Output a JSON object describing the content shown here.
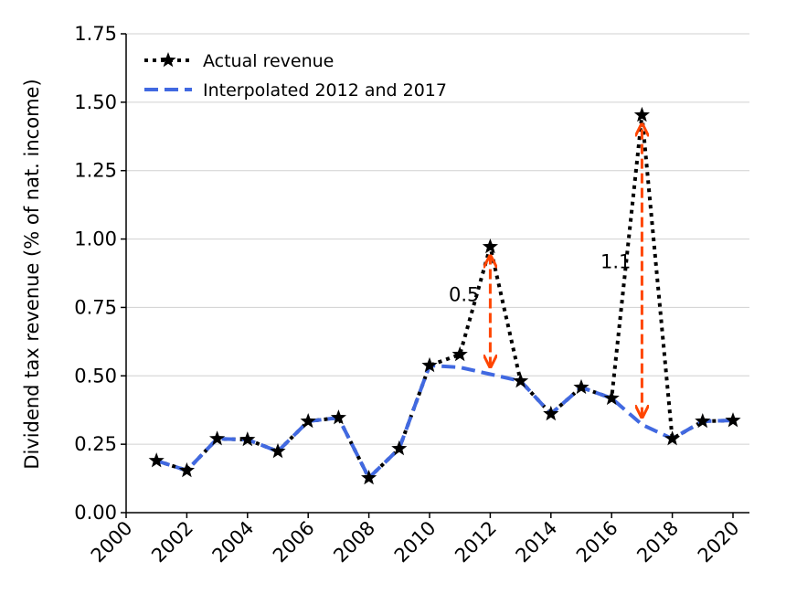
{
  "chart_data": {
    "type": "line",
    "title": "",
    "xlabel": "",
    "ylabel": "Dividend tax revenue (% of nat. income)",
    "xlim": [
      2000,
      2020.5
    ],
    "ylim": [
      0,
      1.75
    ],
    "xticks": [
      "2000",
      "2002",
      "2004",
      "2006",
      "2008",
      "2010",
      "2012",
      "2014",
      "2016",
      "2018",
      "2020"
    ],
    "yticks": [
      "0.00",
      "0.25",
      "0.50",
      "0.75",
      "1.00",
      "1.25",
      "1.50",
      "1.75"
    ],
    "grid": "horizontal",
    "legend_position": "top-left",
    "x": [
      2001,
      2002,
      2003,
      2004,
      2005,
      2006,
      2007,
      2008,
      2009,
      2010,
      2011,
      2012,
      2013,
      2014,
      2015,
      2016,
      2017,
      2018,
      2019,
      2020
    ],
    "series": [
      {
        "name": "Actual revenue",
        "color": "#000000",
        "style": "dotted-star",
        "values": [
          0.19,
          0.154,
          0.27,
          0.267,
          0.224,
          0.334,
          0.347,
          0.127,
          0.234,
          0.538,
          0.578,
          0.972,
          0.481,
          0.361,
          0.458,
          0.418,
          1.453,
          0.27,
          0.334,
          0.337
        ]
      },
      {
        "name": "Interpolated 2012 and 2017",
        "color": "#4169e1",
        "style": "dashed",
        "values": [
          0.19,
          0.154,
          0.27,
          0.267,
          0.224,
          0.334,
          0.347,
          0.127,
          0.234,
          0.538,
          0.531,
          0.506,
          0.481,
          0.361,
          0.458,
          0.418,
          0.322,
          0.27,
          0.334,
          0.337
        ]
      }
    ],
    "annotations": [
      {
        "text": "0.5",
        "x": 2012,
        "from": 0.506,
        "to": 0.972,
        "color": "#ff4500"
      },
      {
        "text": "1.1",
        "x": 2017,
        "from": 0.322,
        "to": 1.453,
        "color": "#ff4500"
      }
    ]
  }
}
